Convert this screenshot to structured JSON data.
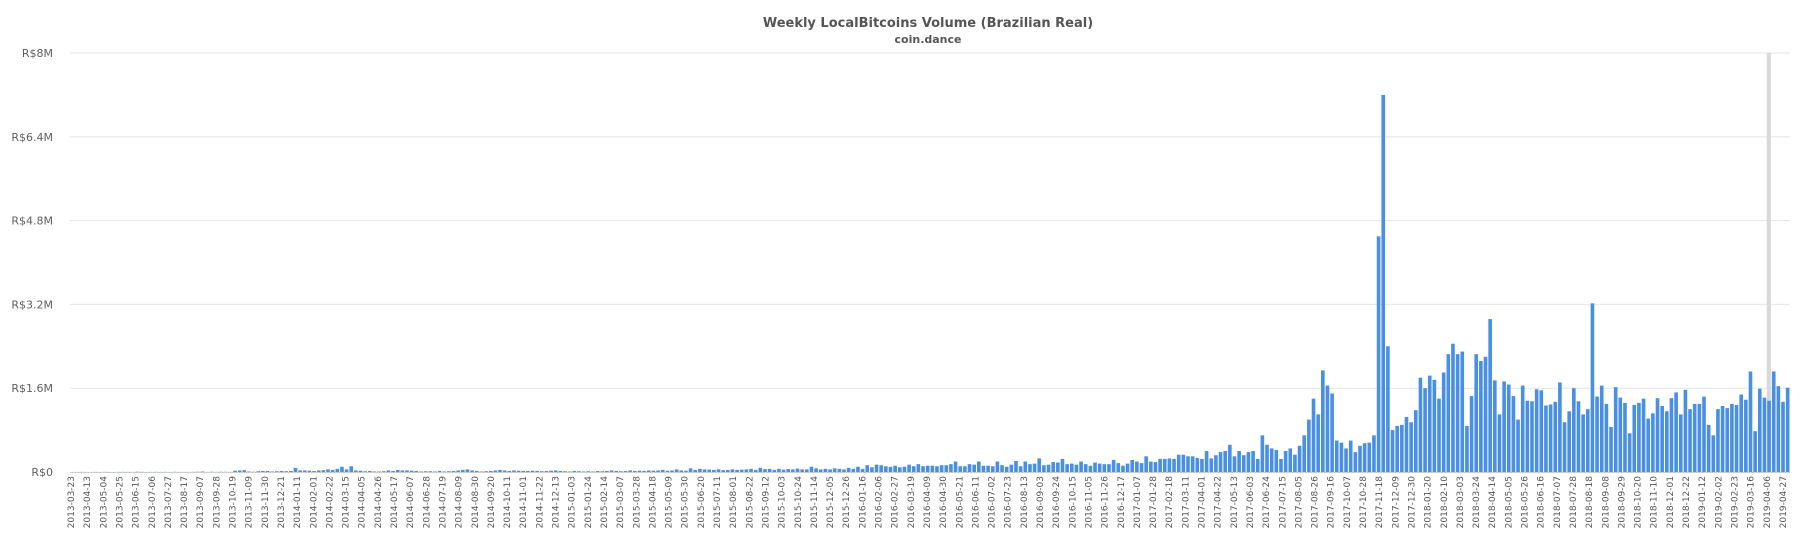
{
  "chart_data": {
    "type": "bar",
    "title": "Weekly LocalBitcoins Volume (Brazilian Real)",
    "subtitle": "coin.dance",
    "xlabel": "",
    "ylabel": "",
    "ylim": [
      0,
      8000000
    ],
    "y_ticks": [
      {
        "value": 0,
        "label": "R$0"
      },
      {
        "value": 1600000,
        "label": "R$1.6M"
      },
      {
        "value": 3200000,
        "label": "R$3.2M"
      },
      {
        "value": 4800000,
        "label": "R$4.8M"
      },
      {
        "value": 6400000,
        "label": "R$6.4M"
      },
      {
        "value": 8000000,
        "label": "R$8M"
      }
    ],
    "grid": true,
    "legend": "none",
    "bar_color": "#4a90e2",
    "highlight_color": "#d9d9d9",
    "highlight_category": "2019-03-30",
    "x_tick_labels": [
      "2013-03-23",
      "2013-04-13",
      "2013-05-04",
      "2013-05-25",
      "2013-06-15",
      "2013-07-06",
      "2013-07-27",
      "2013-08-17",
      "2013-09-07",
      "2013-09-28",
      "2013-10-19",
      "2013-11-09",
      "2013-11-30",
      "2013-12-21",
      "2014-01-11",
      "2014-02-01",
      "2014-02-22",
      "2014-03-15",
      "2014-04-05",
      "2014-04-26",
      "2014-05-17",
      "2014-06-07",
      "2014-06-28",
      "2014-07-19",
      "2014-08-09",
      "2014-08-30",
      "2014-09-20",
      "2014-10-11",
      "2014-11-01",
      "2014-11-22",
      "2014-12-13",
      "2015-01-03",
      "2015-01-24",
      "2015-02-14",
      "2015-03-07",
      "2015-03-28",
      "2015-04-18",
      "2015-05-09",
      "2015-05-30",
      "2015-06-20",
      "2015-07-11",
      "2015-08-01",
      "2015-08-22",
      "2015-09-12",
      "2015-10-03",
      "2015-10-24",
      "2015-11-14",
      "2015-12-05",
      "2015-12-26",
      "2016-01-16",
      "2016-02-06",
      "2016-02-27",
      "2016-03-19",
      "2016-04-09",
      "2016-04-30",
      "2016-05-21",
      "2016-06-11",
      "2016-07-02",
      "2016-07-23",
      "2016-08-13",
      "2016-09-03",
      "2016-09-24",
      "2016-10-15",
      "2016-11-05",
      "2016-11-26",
      "2016-12-17",
      "2017-01-07",
      "2017-01-28",
      "2017-02-18",
      "2017-03-11",
      "2017-04-01",
      "2017-04-22",
      "2017-05-13",
      "2017-06-03",
      "2017-06-24",
      "2017-07-15",
      "2017-08-05",
      "2017-08-26",
      "2017-09-16",
      "2017-10-07",
      "2017-10-28",
      "2017-11-18",
      "2017-12-09",
      "2017-12-30",
      "2018-01-20",
      "2018-02-10",
      "2018-03-03",
      "2018-03-24",
      "2018-04-14",
      "2018-05-05",
      "2018-05-26",
      "2018-06-16",
      "2018-07-07",
      "2018-07-28",
      "2018-08-18",
      "2018-09-08",
      "2018-09-29",
      "2018-10-20",
      "2018-11-10",
      "2018-12-01",
      "2018-12-22",
      "2019-01-12",
      "2019-02-02",
      "2019-02-23",
      "2019-03-16",
      "2019-04-06",
      "2019-04-27"
    ],
    "values": [
      1000,
      1000,
      2000,
      1000,
      1000,
      2000,
      1000,
      3000,
      2000,
      1000,
      2000,
      3000,
      3000,
      2000,
      5000,
      3000,
      1000,
      2000,
      4000,
      2000,
      3000,
      2000,
      4000,
      2000,
      1000,
      2000,
      3000,
      5000,
      10000,
      2000,
      5000,
      3000,
      5000,
      4000,
      3000,
      25000,
      30000,
      35000,
      10000,
      5000,
      15000,
      20000,
      20000,
      10000,
      15000,
      20000,
      15000,
      20000,
      80000,
      30000,
      30000,
      25000,
      20000,
      30000,
      35000,
      50000,
      40000,
      60000,
      100000,
      50000,
      110000,
      30000,
      25000,
      15000,
      20000,
      10000,
      10000,
      15000,
      30000,
      20000,
      40000,
      30000,
      30000,
      25000,
      20000,
      10000,
      15000,
      15000,
      10000,
      20000,
      10000,
      15000,
      20000,
      30000,
      40000,
      50000,
      30000,
      20000,
      10000,
      15000,
      20000,
      30000,
      40000,
      30000,
      20000,
      30000,
      25000,
      20000,
      20000,
      25000,
      20000,
      15000,
      20000,
      25000,
      30000,
      20000,
      15000,
      10000,
      20000,
      15000,
      10000,
      15000,
      10000,
      20000,
      15000,
      20000,
      30000,
      20000,
      15000,
      20000,
      30000,
      20000,
      25000,
      20000,
      30000,
      25000,
      30000,
      40000,
      25000,
      30000,
      50000,
      30000,
      25000,
      70000,
      40000,
      60000,
      50000,
      45000,
      40000,
      50000,
      35000,
      40000,
      50000,
      40000,
      45000,
      50000,
      60000,
      40000,
      80000,
      55000,
      60000,
      40000,
      60000,
      45000,
      55000,
      50000,
      65000,
      50000,
      50000,
      100000,
      70000,
      50000,
      60000,
      50000,
      70000,
      60000,
      50000,
      80000,
      60000,
      100000,
      60000,
      130000,
      90000,
      140000,
      130000,
      110000,
      100000,
      120000,
      90000,
      100000,
      140000,
      110000,
      150000,
      110000,
      120000,
      120000,
      110000,
      130000,
      130000,
      150000,
      200000,
      110000,
      110000,
      150000,
      140000,
      200000,
      120000,
      120000,
      110000,
      200000,
      130000,
      100000,
      140000,
      210000,
      110000,
      200000,
      150000,
      160000,
      260000,
      130000,
      140000,
      190000,
      180000,
      250000,
      150000,
      160000,
      140000,
      200000,
      150000,
      120000,
      180000,
      160000,
      150000,
      150000,
      230000,
      170000,
      120000,
      160000,
      230000,
      200000,
      170000,
      300000,
      200000,
      190000,
      250000,
      250000,
      260000,
      250000,
      330000,
      330000,
      300000,
      300000,
      270000,
      250000,
      400000,
      260000,
      320000,
      380000,
      400000,
      520000,
      300000,
      400000,
      320000,
      380000,
      400000,
      250000,
      700000,
      520000,
      450000,
      420000,
      250000,
      400000,
      450000,
      330000,
      500000,
      700000,
      1000000,
      1400000,
      1100000,
      1940000,
      1650000,
      1500000,
      600000,
      560000,
      450000,
      600000,
      380000,
      500000,
      550000,
      560000,
      700000,
      4500000,
      7200000,
      2400000,
      800000,
      880000,
      900000,
      1050000,
      950000,
      1180000,
      1800000,
      1600000,
      1840000,
      1760000,
      1400000,
      1900000,
      2250000,
      2450000,
      2250000,
      2300000,
      880000,
      1450000,
      2250000,
      2120000,
      2200000,
      2920000,
      1750000,
      1100000,
      1730000,
      1670000,
      1450000,
      1000000,
      1650000,
      1360000,
      1350000,
      1580000,
      1560000,
      1270000,
      1290000,
      1340000,
      1710000,
      950000,
      1160000,
      1600000,
      1350000,
      1100000,
      1200000,
      3220000,
      1440000,
      1650000,
      1300000,
      860000,
      1620000,
      1420000,
      1320000,
      740000,
      1280000,
      1320000,
      1400000,
      1020000,
      1120000,
      1410000,
      1260000,
      1160000,
      1410000,
      1520000,
      1100000,
      1570000,
      1200000,
      1300000,
      1300000,
      1440000,
      900000,
      700000,
      1200000,
      1260000,
      1220000,
      1300000,
      1280000,
      1480000,
      1380000,
      1920000,
      780000,
      1590000,
      1420000,
      1360000,
      1920000,
      1640000,
      1340000,
      1610000
    ]
  }
}
